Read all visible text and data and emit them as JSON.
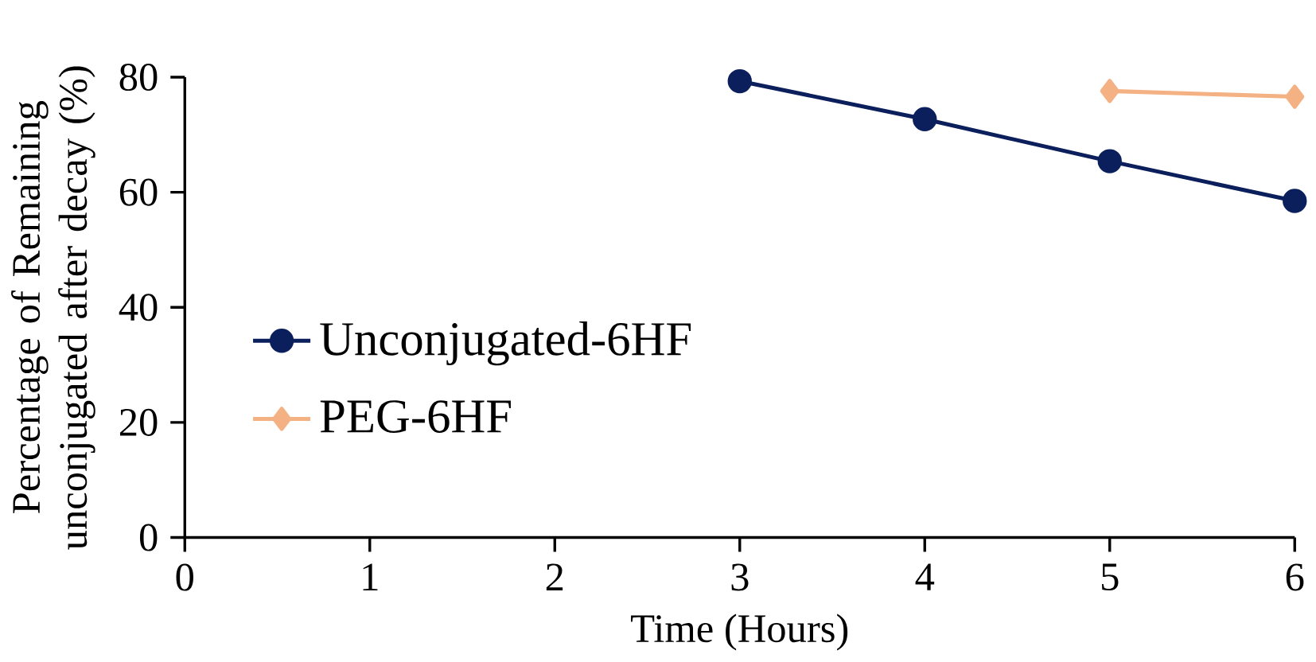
{
  "chart_data": {
    "type": "line",
    "xlabel": "Time (Hours)",
    "ylabel": "Percentage of Remaining unconjugated after decay (%)",
    "xlim": [
      0,
      6
    ],
    "xticks": [
      0,
      1,
      2,
      3,
      4,
      5,
      6
    ],
    "ylim": [
      0,
      80
    ],
    "yticks": [
      0,
      20,
      40,
      60,
      80
    ],
    "legend": "left",
    "grid": false,
    "series": [
      {
        "name": "Unconjugated-6HF",
        "color": "#0a1f5c",
        "marker": "circle",
        "x": [
          3,
          4,
          5,
          6
        ],
        "values": [
          79.3,
          72.7,
          65.4,
          58.5
        ]
      },
      {
        "name": "PEG-6HF",
        "color": "#f4b183",
        "marker": "diamond",
        "x": [
          5,
          6
        ],
        "values": [
          77.6,
          76.6
        ]
      }
    ]
  }
}
